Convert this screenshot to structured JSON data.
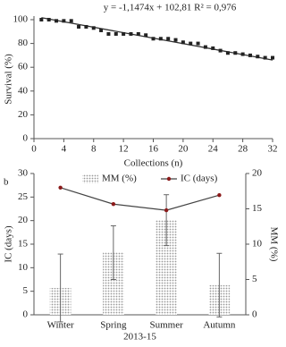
{
  "chart_data": [
    {
      "type": "scatter",
      "annotation": "y = -1,1474x + 102,81 R² = 0,976",
      "x_label": "Collections (n)",
      "y_label": "Survival (%)",
      "x": [
        1,
        2,
        3,
        4,
        5,
        6,
        7,
        8,
        9,
        10,
        11,
        12,
        13,
        14,
        15,
        16,
        17,
        18,
        19,
        20,
        21,
        22,
        23,
        24,
        25,
        26,
        27,
        28,
        29,
        30,
        31,
        32
      ],
      "values": [
        100,
        100,
        99,
        99,
        99,
        94,
        94,
        93,
        91,
        88,
        88,
        88,
        88,
        88,
        87,
        84,
        84,
        84,
        83,
        81,
        80,
        80,
        77,
        76,
        74,
        72,
        72,
        71,
        70,
        69,
        68,
        68
      ],
      "color": "#222222",
      "trendline": {
        "x": [
          1,
          32
        ],
        "values": [
          101.7,
          66.1
        ],
        "color": "#333333"
      },
      "xlim": [
        0,
        32
      ],
      "xticks": [
        0,
        4,
        8,
        12,
        16,
        20,
        24,
        28,
        32
      ],
      "ylim": [
        0,
        100
      ],
      "yticks": [
        0,
        20,
        40,
        60,
        80,
        100
      ]
    },
    {
      "type": "bar",
      "panel_label": "b",
      "categories": [
        "Winter",
        "Spring",
        "Summer",
        "Autumn"
      ],
      "x_label": "2013-15",
      "y_label": "IC (days)",
      "y2_label": "MM (%)",
      "series": [
        {
          "name": "MM (%)",
          "color": "#9a9a9a",
          "axis": "y2",
          "values": [
            3.8,
            8.8,
            13.4,
            4.2
          ],
          "errors": [
            4.8,
            3.8,
            3.6,
            4.5
          ]
        },
        {
          "name": "IC (days)",
          "color": "#8b1a1a",
          "type": "line",
          "values": [
            27,
            23.5,
            22.2,
            25.4
          ]
        }
      ],
      "ylim": [
        0,
        30
      ],
      "yticks": [
        0,
        5,
        10,
        15,
        20,
        25,
        30
      ],
      "y2lim": [
        0,
        20
      ],
      "y2ticks": [
        0,
        5,
        10,
        15,
        20
      ]
    }
  ]
}
